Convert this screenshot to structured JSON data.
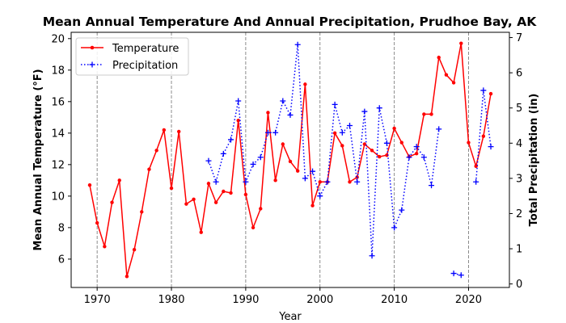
{
  "chart_data": {
    "type": "line",
    "title": "Mean Annual Temperature And Annual Precipitation, Prudhoe Bay, AK",
    "xlabel": "Year",
    "ylabel_left": "Mean Annual Temperature (°F)",
    "ylabel_right": "Total Precipitation (in)",
    "xlim": [
      1966.5,
      2025.5
    ],
    "ylim_left": [
      4.2,
      20.4
    ],
    "ylim_right": [
      -0.1,
      7.15
    ],
    "x_ticks": [
      1970,
      1980,
      1990,
      2000,
      2010,
      2020
    ],
    "y_left_ticks": [
      6,
      8,
      10,
      12,
      14,
      16,
      18,
      20
    ],
    "y_right_ticks": [
      0,
      1,
      2,
      3,
      4,
      5,
      6,
      7
    ],
    "vertical_grid": true,
    "legend_position": "upper left",
    "series": [
      {
        "name": "Temperature",
        "axis": "left",
        "color": "#ff0000",
        "style": "solid",
        "marker": "dot",
        "x": [
          1969,
          1970,
          1971,
          1972,
          1973,
          1974,
          1975,
          1976,
          1977,
          1978,
          1979,
          1980,
          1981,
          1982,
          1983,
          1984,
          1985,
          1986,
          1987,
          1988,
          1989,
          1990,
          1991,
          1992,
          1993,
          1994,
          1995,
          1996,
          1997,
          1998,
          1999,
          2000,
          2001,
          2002,
          2003,
          2004,
          2005,
          2006,
          2007,
          2008,
          2009,
          2010,
          2011,
          2012,
          2013,
          2014,
          2015,
          2016,
          2017,
          2018,
          2019,
          2020,
          2021,
          2022,
          2023
        ],
        "y": [
          10.7,
          8.3,
          6.8,
          9.6,
          11.0,
          4.9,
          6.6,
          9.0,
          11.7,
          12.9,
          14.2,
          10.5,
          14.1,
          9.5,
          9.8,
          7.7,
          10.8,
          9.6,
          10.3,
          10.2,
          14.8,
          10.1,
          8.0,
          9.2,
          15.3,
          11.0,
          13.3,
          12.2,
          11.6,
          17.1,
          9.4,
          10.9,
          10.9,
          14.0,
          13.2,
          10.9,
          11.2,
          13.3,
          12.9,
          12.5,
          12.6,
          14.3,
          13.4,
          12.5,
          12.7,
          15.2,
          15.2,
          18.8,
          17.7,
          17.2,
          19.7,
          13.4,
          11.9,
          13.8,
          16.5
        ]
      },
      {
        "name": "Precipitation",
        "axis": "right",
        "color": "#0000ff",
        "style": "dotted",
        "marker": "plus",
        "x": [
          1985,
          1986,
          1987,
          1988,
          1989,
          1990,
          1991,
          1992,
          1993,
          1994,
          1995,
          1996,
          1997,
          1998,
          1999,
          2000,
          2001,
          2002,
          2003,
          2004,
          2005,
          2006,
          2007,
          2008,
          2009,
          2010,
          2011,
          2012,
          2013,
          2014,
          2015,
          2016,
          null,
          2018,
          2019,
          null,
          2021,
          2022,
          2023
        ],
        "y": [
          3.5,
          2.9,
          3.7,
          4.1,
          5.2,
          2.9,
          3.4,
          3.6,
          4.3,
          4.3,
          5.2,
          4.8,
          6.8,
          3.0,
          3.2,
          2.5,
          2.9,
          5.1,
          4.3,
          4.5,
          2.9,
          4.9,
          0.8,
          5.0,
          4.0,
          1.6,
          2.1,
          3.6,
          3.9,
          3.6,
          2.8,
          4.4,
          null,
          0.3,
          0.25,
          null,
          2.9,
          5.5,
          3.9
        ]
      }
    ]
  }
}
